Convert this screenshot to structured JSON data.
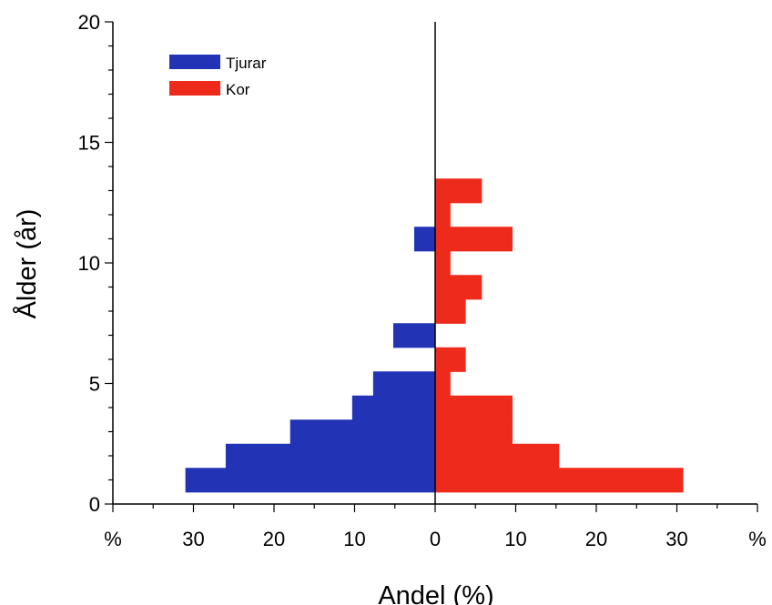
{
  "chart_data": {
    "type": "bar",
    "orientation": "horizontal",
    "layout": "population-pyramid",
    "title": "",
    "xlabel": "Andel (%)",
    "ylabel": "Ålder (år)",
    "x_tick_values": [
      -30,
      -20,
      -10,
      0,
      10,
      20,
      30
    ],
    "x_tick_labels": [
      "30",
      "20",
      "10",
      "0",
      "10",
      "20",
      "30"
    ],
    "x_end_labels": [
      "%",
      "%"
    ],
    "xlim": [
      -40,
      40
    ],
    "y_ticks": [
      0,
      5,
      10,
      15,
      20
    ],
    "ylim": [
      0,
      20
    ],
    "legend_position": "top-left",
    "series": [
      {
        "name": "Tjurar",
        "color": "#2233B5",
        "side": "left",
        "bars": [
          {
            "age": 1,
            "value": 31
          },
          {
            "age": 2,
            "value": 26
          },
          {
            "age": 3,
            "value": 18
          },
          {
            "age": 4,
            "value": 10.3
          },
          {
            "age": 5,
            "value": 7.7
          },
          {
            "age": 7,
            "value": 5.2
          },
          {
            "age": 11,
            "value": 2.6
          }
        ]
      },
      {
        "name": "Kor",
        "color": "#EE2A1A",
        "side": "right",
        "bars": [
          {
            "age": 1,
            "value": 30.8
          },
          {
            "age": 2,
            "value": 15.4
          },
          {
            "age": 3,
            "value": 9.6
          },
          {
            "age": 4,
            "value": 9.6
          },
          {
            "age": 5,
            "value": 1.9
          },
          {
            "age": 6,
            "value": 3.8
          },
          {
            "age": 8,
            "value": 3.8
          },
          {
            "age": 9,
            "value": 5.8
          },
          {
            "age": 10,
            "value": 1.9
          },
          {
            "age": 11,
            "value": 9.6
          },
          {
            "age": 12,
            "value": 1.9
          },
          {
            "age": 13,
            "value": 5.8
          }
        ]
      }
    ]
  }
}
